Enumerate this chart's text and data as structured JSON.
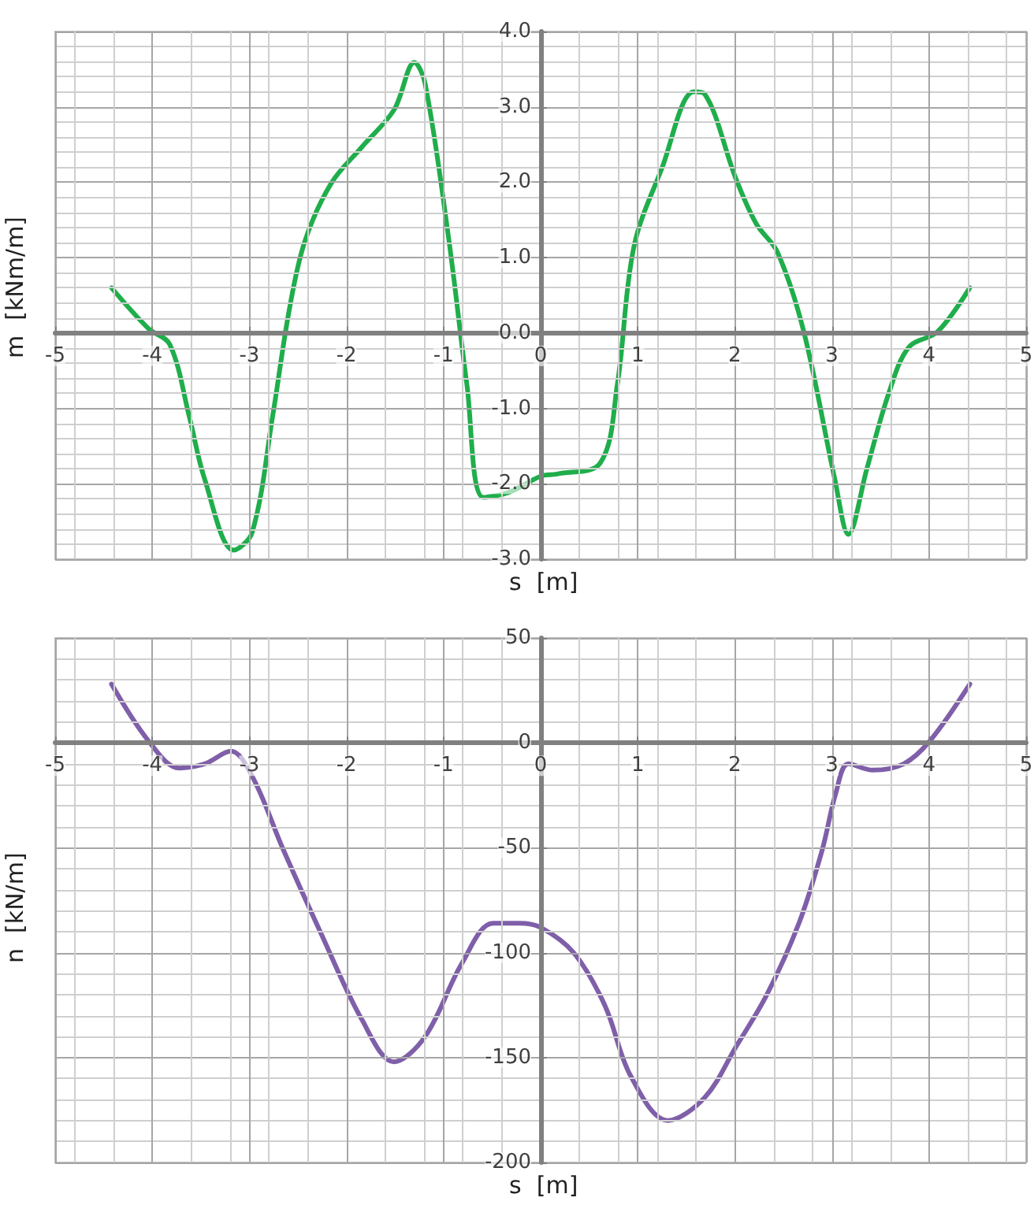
{
  "chart_data": [
    {
      "type": "line",
      "xlabel": "s  [m]",
      "ylabel": "m  [kNm/m]",
      "xlim": [
        -5,
        5
      ],
      "xticks": [
        -5,
        -4,
        -3,
        -2,
        -1,
        0,
        1,
        2,
        3,
        4,
        5
      ],
      "ylim": [
        -3,
        4
      ],
      "yticks": [
        {
          "value": -3,
          "label": "-3.0"
        },
        {
          "value": -2,
          "label": "-2.0"
        },
        {
          "value": -1,
          "label": "-1.0"
        },
        {
          "value": 0,
          "label": "0.0"
        },
        {
          "value": 1,
          "label": "1.0"
        },
        {
          "value": 2,
          "label": "2.0"
        },
        {
          "value": 3,
          "label": "3.0"
        },
        {
          "value": 4,
          "label": "4.0"
        }
      ],
      "grid": true,
      "marker": "none",
      "line_style": "solid",
      "series": [
        {
          "color": "#1fae4b",
          "x": [
            -4.42,
            -4.04,
            -3.82,
            -3.62,
            -3.46,
            -3.16,
            -2.97,
            -2.76,
            -2.59,
            -2.43,
            -2.16,
            -1.84,
            -1.51,
            -1.3,
            -1.19,
            -0.95,
            -0.76,
            -0.59,
            -0.32,
            0,
            0.17,
            0.61,
            0.79,
            0.96,
            1.25,
            1.58,
            1.69,
            2.01,
            2.22,
            2.44,
            2.71,
            3.03,
            3.17,
            3.36,
            3.58,
            3.79,
            4.09,
            4.42
          ],
          "values": [
            0.6,
            0.06,
            -0.15,
            -1.1,
            -1.94,
            -2.88,
            -2.64,
            -1.1,
            0.3,
            1.21,
            1.98,
            2.47,
            2.96,
            3.59,
            3.31,
            1.28,
            -0.68,
            -2.18,
            -2.11,
            -1.9,
            -1.87,
            -1.73,
            -0.68,
            1.14,
            2.19,
            3.2,
            3.17,
            2.05,
            1.45,
            1.07,
            0.02,
            -1.94,
            -2.67,
            -1.8,
            -0.82,
            -0.19,
            0.02,
            0.6
          ]
        }
      ]
    },
    {
      "type": "line",
      "xlabel": "s  [m]",
      "ylabel": "n  [kN/m]",
      "xlim": [
        -5,
        5
      ],
      "xticks": [
        -5,
        -4,
        -3,
        -2,
        -1,
        0,
        1,
        2,
        3,
        4,
        5
      ],
      "ylim": [
        -200,
        50
      ],
      "yticks": [
        -200,
        -150,
        -100,
        -50,
        0,
        50
      ],
      "grid": true,
      "marker": "none",
      "line_style": "solid",
      "series": [
        {
          "color": "#7f5fa9",
          "x": [
            -4.42,
            -4.04,
            -3.72,
            -3.46,
            -3.19,
            -2.97,
            -2.65,
            -2.27,
            -1.84,
            -1.51,
            -1.19,
            -0.81,
            -0.49,
            -0.22,
            0,
            0.34,
            0.66,
            0.93,
            1.31,
            1.69,
            2.01,
            2.33,
            2.66,
            2.9,
            3.04,
            3.17,
            3.42,
            3.74,
            4.01,
            4.42
          ],
          "values": [
            28,
            1,
            -12,
            -10,
            -4,
            -16,
            -51,
            -90,
            -132,
            -152,
            -140,
            -105,
            -86,
            -86,
            -88,
            -100,
            -125,
            -159,
            -180,
            -169,
            -145,
            -120,
            -86,
            -51,
            -24,
            -10,
            -13,
            -10,
            1,
            28
          ]
        }
      ]
    }
  ]
}
